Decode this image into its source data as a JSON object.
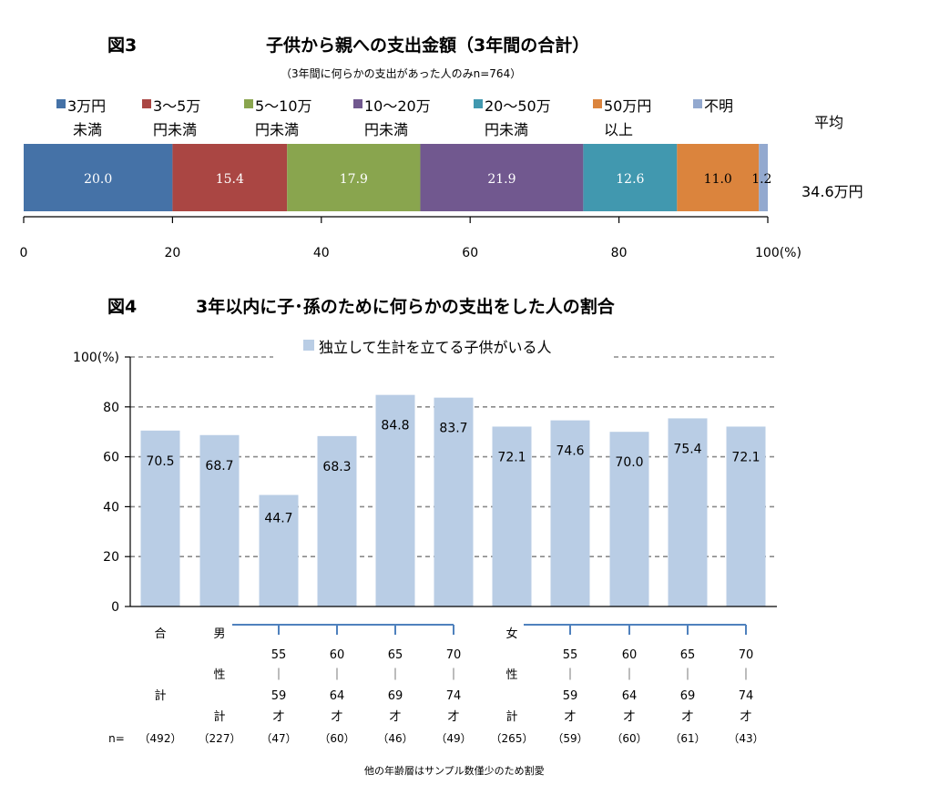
{
  "chart_data": [
    {
      "type": "bar",
      "orientation": "horizontal-stacked",
      "figure_label": "図3",
      "title": "子供から親への支出金額（3年間の合計）",
      "subtitle": "（3年間に何らかの支出があった人のみn=764）",
      "series": [
        {
          "name_line1": "3万円",
          "name_line2": "未満",
          "value": 20.0,
          "color": "#4572A7"
        },
        {
          "name_line1": "3～5万",
          "name_line2": "円未満",
          "value": 15.4,
          "color": "#AA4643"
        },
        {
          "name_line1": "5～10万",
          "name_line2": "円未満",
          "value": 17.9,
          "color": "#89A54E"
        },
        {
          "name_line1": "10～20万",
          "name_line2": "円未満",
          "value": 21.9,
          "color": "#71588F"
        },
        {
          "name_line1": "20～50万",
          "name_line2": "円未満",
          "value": 12.6,
          "color": "#4198AF"
        },
        {
          "name_line1": "50万円",
          "name_line2": "以上",
          "value": 11.0,
          "color": "#DB843D"
        },
        {
          "name_line1": "不明",
          "name_line2": "",
          "value": 1.2,
          "color": "#93A9CF"
        }
      ],
      "xlim": [
        0,
        100
      ],
      "xticks": [
        "0",
        "20",
        "40",
        "60",
        "80",
        "100(%)"
      ],
      "average_label": "平均",
      "average_value": "34.6万円",
      "grid": false,
      "legend": "top"
    },
    {
      "type": "bar",
      "figure_label": "図4",
      "title": "3年以内に子･孫のために何らかの支出をした人の割合",
      "legend_label": "独立して生計を立てる子供がいる人",
      "values": [
        70.5,
        68.7,
        44.7,
        68.3,
        84.8,
        83.7,
        72.1,
        74.6,
        70.0,
        75.4,
        72.1
      ],
      "value_labels": [
        "70.5",
        "68.7",
        "44.7",
        "68.3",
        "84.8",
        "83.7",
        "72.1",
        "74.6",
        "70.0",
        "75.4",
        "72.1"
      ],
      "categories": [
        {
          "lines": [
            "合",
            "",
            "計"
          ],
          "n": "（492）"
        },
        {
          "lines": [
            "男",
            "性",
            "",
            "計"
          ],
          "n": "（227）"
        },
        {
          "lines": [
            "55",
            "｜",
            "59",
            "才"
          ],
          "n": "（47）"
        },
        {
          "lines": [
            "60",
            "｜",
            "64",
            "才"
          ],
          "n": "（60）"
        },
        {
          "lines": [
            "65",
            "｜",
            "69",
            "才"
          ],
          "n": "（46）"
        },
        {
          "lines": [
            "70",
            "｜",
            "74",
            "才"
          ],
          "n": "（49）"
        },
        {
          "lines": [
            "女",
            "性",
            "",
            "計"
          ],
          "n": "（265）"
        },
        {
          "lines": [
            "55",
            "｜",
            "59",
            "才"
          ],
          "n": "（59）"
        },
        {
          "lines": [
            "60",
            "｜",
            "64",
            "才"
          ],
          "n": "（60）"
        },
        {
          "lines": [
            "65",
            "｜",
            "69",
            "才"
          ],
          "n": "（61）"
        },
        {
          "lines": [
            "70",
            "｜",
            "74",
            "才"
          ],
          "n": "（43）"
        }
      ],
      "n_label": "n=",
      "yticks": [
        "0",
        "20",
        "40",
        "60",
        "80",
        "100(%)"
      ],
      "ylim": [
        0,
        100
      ],
      "grid": true,
      "bar_color": "#B9CDE5",
      "footnote": "他の年齢層はサンプル数僅少のため割愛"
    }
  ]
}
